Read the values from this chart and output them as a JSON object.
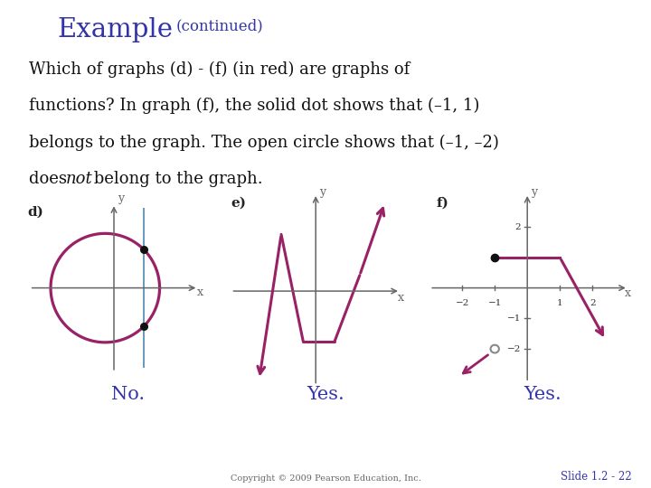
{
  "bg_color": "#ffffff",
  "left_bar_color": "#7B1515",
  "title_text": "Example",
  "title_color": "#3333AA",
  "subtitle_text": "(continued)",
  "subtitle_color": "#3333AA",
  "body_lines": [
    "Which of graphs (d) - (f) (in red) are graphs of",
    "functions? In graph (f), the solid dot shows that (–1, 1)",
    "belongs to the graph. The open circle shows that (–1, –2)",
    "does "
  ],
  "body_italic": "not",
  "body_end": " belong to the graph.",
  "body_color": "#111111",
  "graph_color": "#992266",
  "axis_color": "#666666",
  "blue_line_color": "#6699BB",
  "dot_color": "#111111",
  "answer_no": "No.",
  "answer_yes": "Yes.",
  "answer_color": "#3333AA",
  "copyright_text": "Copyright © 2009 Pearson Education, Inc.",
  "slide_text": "Slide 1.2 - 22",
  "slide_color": "#3333AA",
  "label_color": "#333333"
}
